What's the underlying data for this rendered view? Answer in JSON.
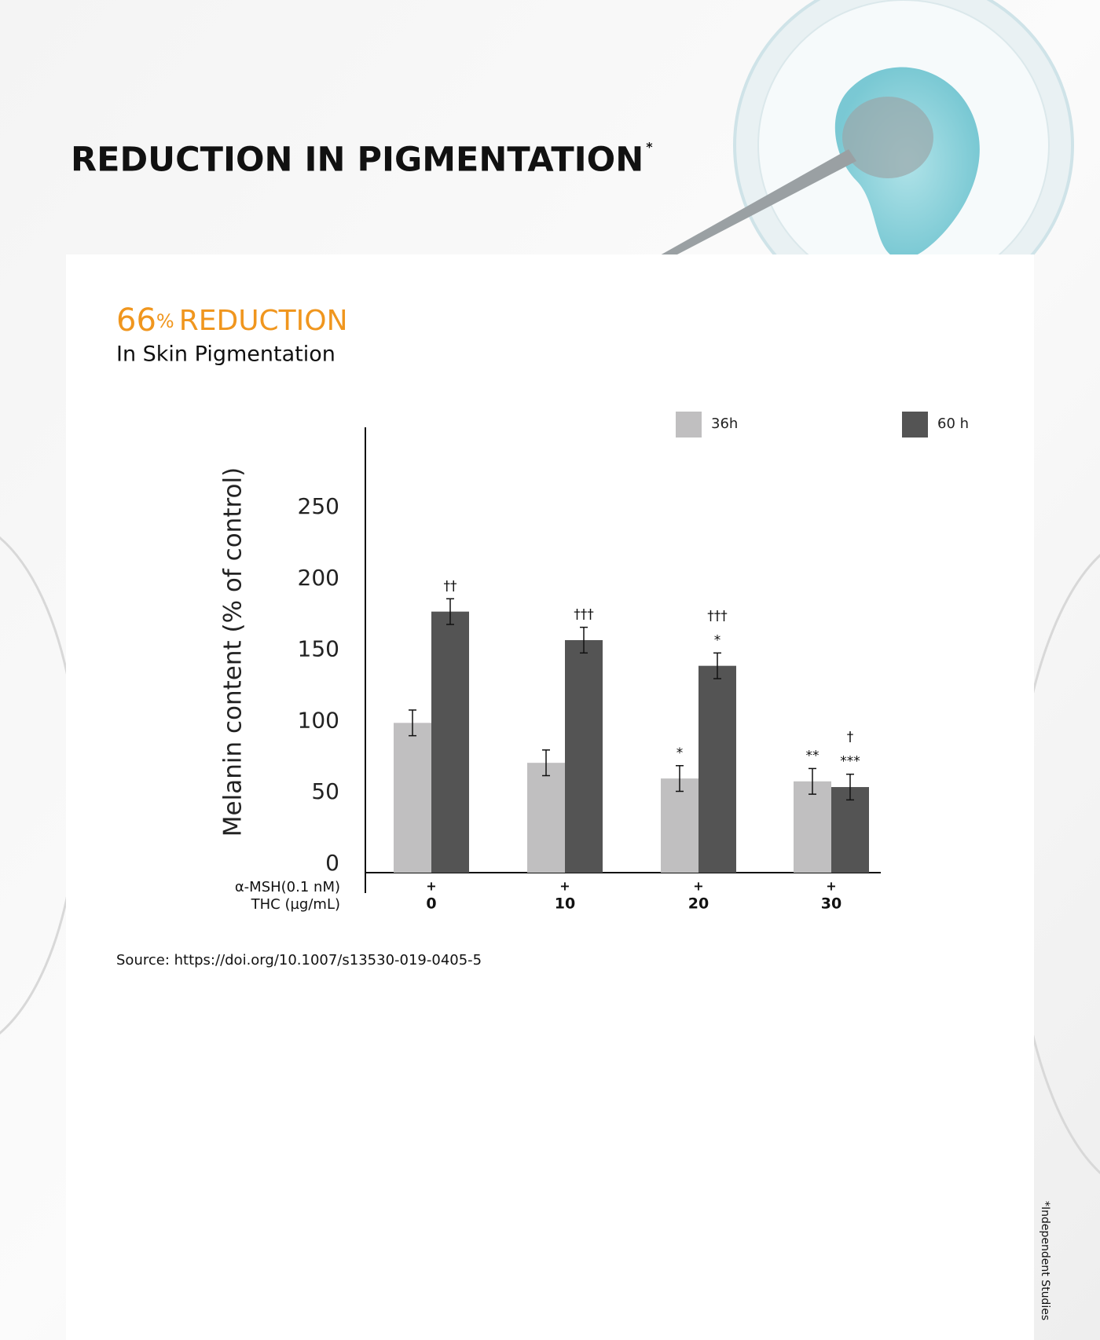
{
  "header": {
    "title": "REDUCTION IN PIGMENTATION",
    "title_mark": "*"
  },
  "headline": {
    "number": "66",
    "unit": "%",
    "text": "REDUCTION",
    "subtitle": "In Skin Pigmentation"
  },
  "chart_data": {
    "type": "bar",
    "y_label": "Melanin content (% of control)",
    "row_labels": [
      "α-MSH(0.1 nM)",
      "THC (µg/mL)"
    ],
    "msh_row": [
      "+",
      "+",
      "+",
      "+"
    ],
    "categories": [
      "0",
      "10",
      "20",
      "30"
    ],
    "series": [
      {
        "name": "36h",
        "color": "#c0bfc0",
        "values": [
          105,
          77,
          66,
          64
        ],
        "errors": [
          9,
          9,
          9,
          9
        ],
        "annotations": [
          [],
          [],
          [
            "*"
          ],
          [
            "**"
          ]
        ]
      },
      {
        "name": "60 h",
        "color": "#545454",
        "values": [
          183,
          163,
          145,
          60
        ],
        "errors": [
          9,
          9,
          9,
          9
        ],
        "annotations": [
          [
            "††"
          ],
          [
            "†††"
          ],
          [
            "†††",
            "*"
          ],
          [
            "†",
            "***"
          ]
        ]
      }
    ],
    "ylim": [
      0,
      310
    ],
    "yticks": [
      0,
      50,
      100,
      150,
      200,
      250
    ]
  },
  "source": "Source: https://doi.org/10.1007/s13530-019-0405-5",
  "side_note": "*Independent Studies"
}
